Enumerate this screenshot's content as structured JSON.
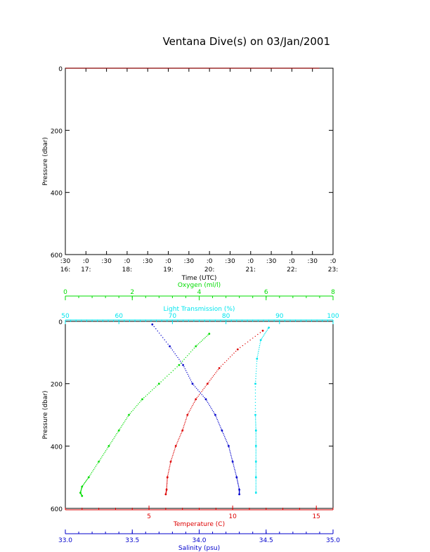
{
  "title": "Ventana Dive(s) on 03/Jan/2001",
  "chart_data": [
    {
      "type": "line",
      "title": "Ventana Dive(s) on 03/Jan/2001",
      "xlabel": "Time (UTC)",
      "ylabel": "Pressure (dbar)",
      "xlim": [
        "16:30",
        "23:00"
      ],
      "ylim": [
        600,
        0
      ],
      "x_ticks": [
        {
          "t": "16:30",
          "l1": ":30",
          "l2": "16:"
        },
        {
          "t": "17:00",
          "l1": ":0",
          "l2": "17:"
        },
        {
          "t": "17:30",
          "l1": ":30",
          "l2": ""
        },
        {
          "t": "18:00",
          "l1": ":0",
          "l2": "18:"
        },
        {
          "t": "18:30",
          "l1": ":30",
          "l2": ""
        },
        {
          "t": "19:00",
          "l1": ":0",
          "l2": "19:"
        },
        {
          "t": "19:30",
          "l1": ":30",
          "l2": ""
        },
        {
          "t": "20:00",
          "l1": ":0",
          "l2": "20:"
        },
        {
          "t": "20:30",
          "l1": ":30",
          "l2": ""
        },
        {
          "t": "21:00",
          "l1": ":0",
          "l2": "21:"
        },
        {
          "t": "21:30",
          "l1": ":30",
          "l2": ""
        },
        {
          "t": "22:00",
          "l1": ":0",
          "l2": "22:"
        },
        {
          "t": "22:30",
          "l1": ":30",
          "l2": ""
        },
        {
          "t": "23:00",
          "l1": ":0",
          "l2": "23:"
        }
      ],
      "y_ticks": [
        "0",
        "200",
        "400",
        "600"
      ],
      "series": [
        {
          "color": "#cc0000",
          "x": [
            "16:30",
            "17:00",
            "17:12",
            "17:15",
            "17:30",
            "17:45",
            "18:00",
            "18:15",
            "18:30",
            "18:45",
            "19:00",
            "19:15",
            "19:30",
            "19:45",
            "19:55",
            "20:00",
            "20:08",
            "20:15",
            "20:22",
            "20:28",
            "20:35",
            "20:40",
            "20:45",
            "21:00",
            "21:10",
            "21:15",
            "21:20",
            "21:30",
            "21:40",
            "21:50",
            "21:55",
            "22:00",
            "22:05",
            "22:10",
            "22:13",
            "22:17",
            "22:20",
            "22:25",
            "22:30",
            "22:35",
            "22:40"
          ],
          "y": [
            0,
            0,
            0,
            0,
            0,
            0,
            0,
            0,
            0,
            0,
            0,
            0,
            0,
            0,
            0,
            0,
            0,
            0,
            0,
            0,
            0,
            0,
            0,
            0,
            0,
            0,
            0,
            0,
            0,
            0,
            0,
            0,
            0,
            0,
            0,
            0,
            0,
            0,
            0,
            0,
            0
          ]
        }
      ]
    },
    {
      "type": "scatter",
      "ylabel": "Pressure (dbar)",
      "ylim": [
        600,
        0
      ],
      "y_ticks": [
        "0",
        "200",
        "400",
        "600"
      ],
      "axes": [
        {
          "label": "Oxygen (ml/l)",
          "color": "#00dd00",
          "range": [
            0,
            8
          ],
          "ticks": [
            "0",
            "2",
            "4",
            "6",
            "8"
          ],
          "position": "top"
        },
        {
          "label": "Light Transmission (%)",
          "color": "#00e5ee",
          "range": [
            50,
            100
          ],
          "ticks": [
            "50",
            "60",
            "70",
            "80",
            "90",
            "100"
          ],
          "position": "top"
        },
        {
          "label": "Temperature (C)",
          "color": "#dd0000",
          "range": [
            0,
            16
          ],
          "ticks": [
            "5",
            "10",
            "15"
          ],
          "position": "bottom"
        },
        {
          "label": "Salinity (psu)",
          "color": "#0000cc",
          "range": [
            33.0,
            35.0
          ],
          "ticks": [
            "33.0",
            "33.5",
            "34.0",
            "34.5",
            "35.0"
          ],
          "position": "bottom"
        }
      ],
      "series": [
        {
          "name": "Oxygen",
          "color": "#00dd00",
          "axis": 0,
          "x": [
            4.3,
            3.9,
            3.4,
            2.8,
            2.3,
            1.9,
            1.6,
            1.3,
            1.0,
            0.7,
            0.5,
            0.45,
            0.5
          ],
          "y": [
            40,
            80,
            140,
            200,
            250,
            300,
            350,
            400,
            450,
            500,
            530,
            550,
            560
          ]
        },
        {
          "name": "Light Transmission",
          "color": "#00e5ee",
          "axis": 1,
          "x": [
            88,
            86.5,
            85.8,
            85.5,
            85.5,
            85.6,
            85.6,
            85.6,
            85.6,
            85.6
          ],
          "y": [
            20,
            60,
            120,
            200,
            300,
            350,
            400,
            450,
            500,
            550
          ]
        },
        {
          "name": "Temperature",
          "color": "#dd0000",
          "axis": 2,
          "x": [
            11.8,
            10.3,
            9.2,
            8.5,
            7.8,
            7.3,
            7.0,
            6.6,
            6.3,
            6.1,
            6.05,
            6.0
          ],
          "y": [
            30,
            90,
            150,
            200,
            250,
            300,
            350,
            400,
            450,
            500,
            540,
            555
          ]
        },
        {
          "name": "Salinity",
          "color": "#0000cc",
          "axis": 3,
          "x": [
            33.65,
            33.78,
            33.88,
            33.95,
            34.05,
            34.12,
            34.17,
            34.22,
            34.25,
            34.28,
            34.3,
            34.3
          ],
          "y": [
            10,
            80,
            140,
            200,
            250,
            300,
            350,
            400,
            450,
            500,
            540,
            555
          ]
        }
      ]
    }
  ]
}
